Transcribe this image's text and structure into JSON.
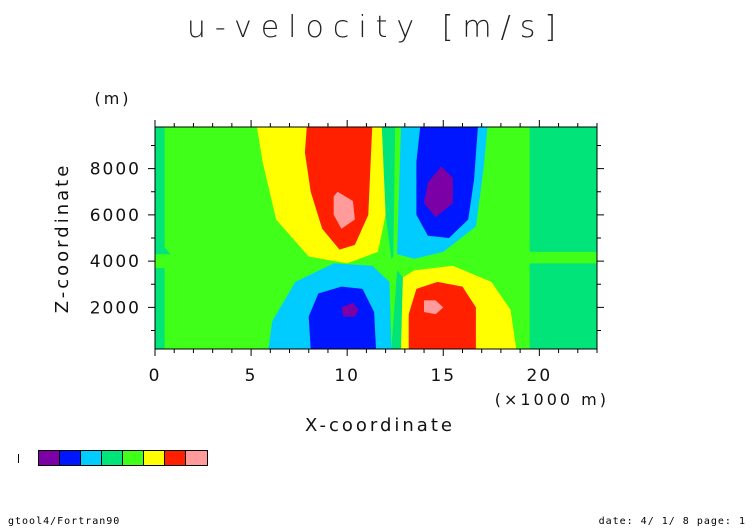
{
  "chart_data": {
    "type": "heatmap",
    "title": "u-velocity [m/s]",
    "xlabel": "X-coordinate",
    "ylabel": "Z-coordinate",
    "x_unit_label": "(×1000 m)",
    "y_unit_label": "(m)",
    "x_ticks": [
      "0",
      "5",
      "10",
      "15",
      "20"
    ],
    "y_ticks": [
      "2000",
      "4000",
      "6000",
      "8000"
    ],
    "xlim": [
      0,
      23
    ],
    "ylim": [
      200,
      9800
    ],
    "grid": false,
    "legend": "colorbar bottom-left",
    "levels_colors": [
      "#7b00a6",
      "#0016ff",
      "#00ccff",
      "#00e47a",
      "#40ff18",
      "#ffff00",
      "#ff2000",
      "#ff9b9b"
    ],
    "contour_regions": [
      {
        "color": "#40ff18",
        "polygon": [
          [
            0,
            200
          ],
          [
            23,
            200
          ],
          [
            23,
            9800
          ],
          [
            0,
            9800
          ]
        ]
      },
      {
        "color": "#00e47a",
        "polygon": [
          [
            0.5,
            9800
          ],
          [
            0.5,
            4600
          ],
          [
            0.8,
            4300
          ],
          [
            0,
            4300
          ],
          [
            0,
            9800
          ]
        ]
      },
      {
        "color": "#00e47a",
        "polygon": [
          [
            19.5,
            9800
          ],
          [
            23,
            9800
          ],
          [
            23,
            4400
          ],
          [
            19.5,
            4400
          ]
        ]
      },
      {
        "color": "#00e47a",
        "polygon": [
          [
            19.5,
            200
          ],
          [
            23,
            200
          ],
          [
            23,
            3900
          ],
          [
            19.5,
            3900
          ]
        ]
      },
      {
        "color": "#00e47a",
        "polygon": [
          [
            0,
            200
          ],
          [
            0.5,
            200
          ],
          [
            0.5,
            3700
          ],
          [
            0,
            3700
          ]
        ]
      },
      {
        "color": "#00e47a",
        "polygon": [
          [
            11.8,
            9800
          ],
          [
            12.5,
            9800
          ],
          [
            12.4,
            4200
          ],
          [
            12.3,
            4100
          ],
          [
            12,
            6000
          ]
        ]
      },
      {
        "color": "#00e47a",
        "polygon": [
          [
            12.3,
            200
          ],
          [
            12.8,
            200
          ],
          [
            12.9,
            3300
          ],
          [
            12.6,
            3600
          ]
        ]
      },
      {
        "color": "#ffff00",
        "polygon": [
          [
            5.3,
            9800
          ],
          [
            11.8,
            9800
          ],
          [
            12,
            6000
          ],
          [
            11.6,
            4400
          ],
          [
            10,
            3900
          ],
          [
            8,
            4200
          ],
          [
            6.3,
            5800
          ],
          [
            5.6,
            8300
          ]
        ]
      },
      {
        "color": "#ff2000",
        "polygon": [
          [
            7.9,
            9800
          ],
          [
            11.3,
            9800
          ],
          [
            11.1,
            6000
          ],
          [
            10.4,
            4700
          ],
          [
            9.6,
            4500
          ],
          [
            8.7,
            5400
          ],
          [
            8.1,
            7000
          ],
          [
            7.8,
            8700
          ]
        ]
      },
      {
        "color": "#ff9b9b",
        "polygon": [
          [
            9.5,
            7000
          ],
          [
            10.3,
            6600
          ],
          [
            10.4,
            5800
          ],
          [
            9.7,
            5400
          ],
          [
            9.3,
            6000
          ],
          [
            9.3,
            6800
          ]
        ]
      },
      {
        "color": "#00ccff",
        "polygon": [
          [
            12.8,
            9800
          ],
          [
            17.3,
            9800
          ],
          [
            17.1,
            8000
          ],
          [
            16.7,
            5500
          ],
          [
            15,
            4400
          ],
          [
            13.5,
            4100
          ],
          [
            12.6,
            4300
          ]
        ]
      },
      {
        "color": "#0016ff",
        "polygon": [
          [
            13.8,
            9800
          ],
          [
            16.8,
            9800
          ],
          [
            16.6,
            7500
          ],
          [
            16.3,
            5800
          ],
          [
            15.3,
            5000
          ],
          [
            14.2,
            5100
          ],
          [
            13.6,
            6000
          ],
          [
            13.6,
            8300
          ]
        ]
      },
      {
        "color": "#7b00a6",
        "polygon": [
          [
            14.9,
            8100
          ],
          [
            15.5,
            7600
          ],
          [
            15.5,
            6500
          ],
          [
            14.6,
            5900
          ],
          [
            14,
            6500
          ],
          [
            14.2,
            7400
          ]
        ]
      },
      {
        "color": "#00ccff",
        "polygon": [
          [
            5.9,
            200
          ],
          [
            12.3,
            200
          ],
          [
            12.2,
            3100
          ],
          [
            11.3,
            3800
          ],
          [
            9.3,
            3900
          ],
          [
            7.3,
            3100
          ],
          [
            6.1,
            1400
          ]
        ]
      },
      {
        "color": "#0016ff",
        "polygon": [
          [
            8.1,
            200
          ],
          [
            11.5,
            200
          ],
          [
            11.4,
            1800
          ],
          [
            10.8,
            2800
          ],
          [
            9.7,
            2900
          ],
          [
            8.5,
            2600
          ],
          [
            8,
            1600
          ]
        ]
      },
      {
        "color": "#7b00a6",
        "polygon": [
          [
            9.7,
            2000
          ],
          [
            10.3,
            2200
          ],
          [
            10.6,
            1900
          ],
          [
            10.4,
            1600
          ],
          [
            9.8,
            1600
          ]
        ]
      },
      {
        "color": "#ffff00",
        "polygon": [
          [
            12.8,
            200
          ],
          [
            18.8,
            200
          ],
          [
            18.5,
            1900
          ],
          [
            17.5,
            3100
          ],
          [
            15.5,
            3800
          ],
          [
            13.5,
            3600
          ],
          [
            12.9,
            3300
          ]
        ]
      },
      {
        "color": "#ff2000",
        "polygon": [
          [
            13.2,
            200
          ],
          [
            16.7,
            200
          ],
          [
            16.7,
            2000
          ],
          [
            16,
            2900
          ],
          [
            14.7,
            3100
          ],
          [
            13.6,
            2800
          ],
          [
            13.2,
            1700
          ]
        ]
      },
      {
        "color": "#ff9b9b",
        "polygon": [
          [
            14.0,
            2300
          ],
          [
            14.6,
            2300
          ],
          [
            15.0,
            2000
          ],
          [
            14.6,
            1700
          ],
          [
            14.0,
            1800
          ]
        ]
      }
    ],
    "colorbar_colors": [
      "#7b00a6",
      "#0016ff",
      "#00ccff",
      "#00e47a",
      "#40ff18",
      "#ffff00",
      "#ff2000",
      "#ff9b9b"
    ]
  },
  "footer": {
    "left": "gtool4/Fortran90",
    "right": "date: 4/ 1/ 8 page: 1"
  }
}
